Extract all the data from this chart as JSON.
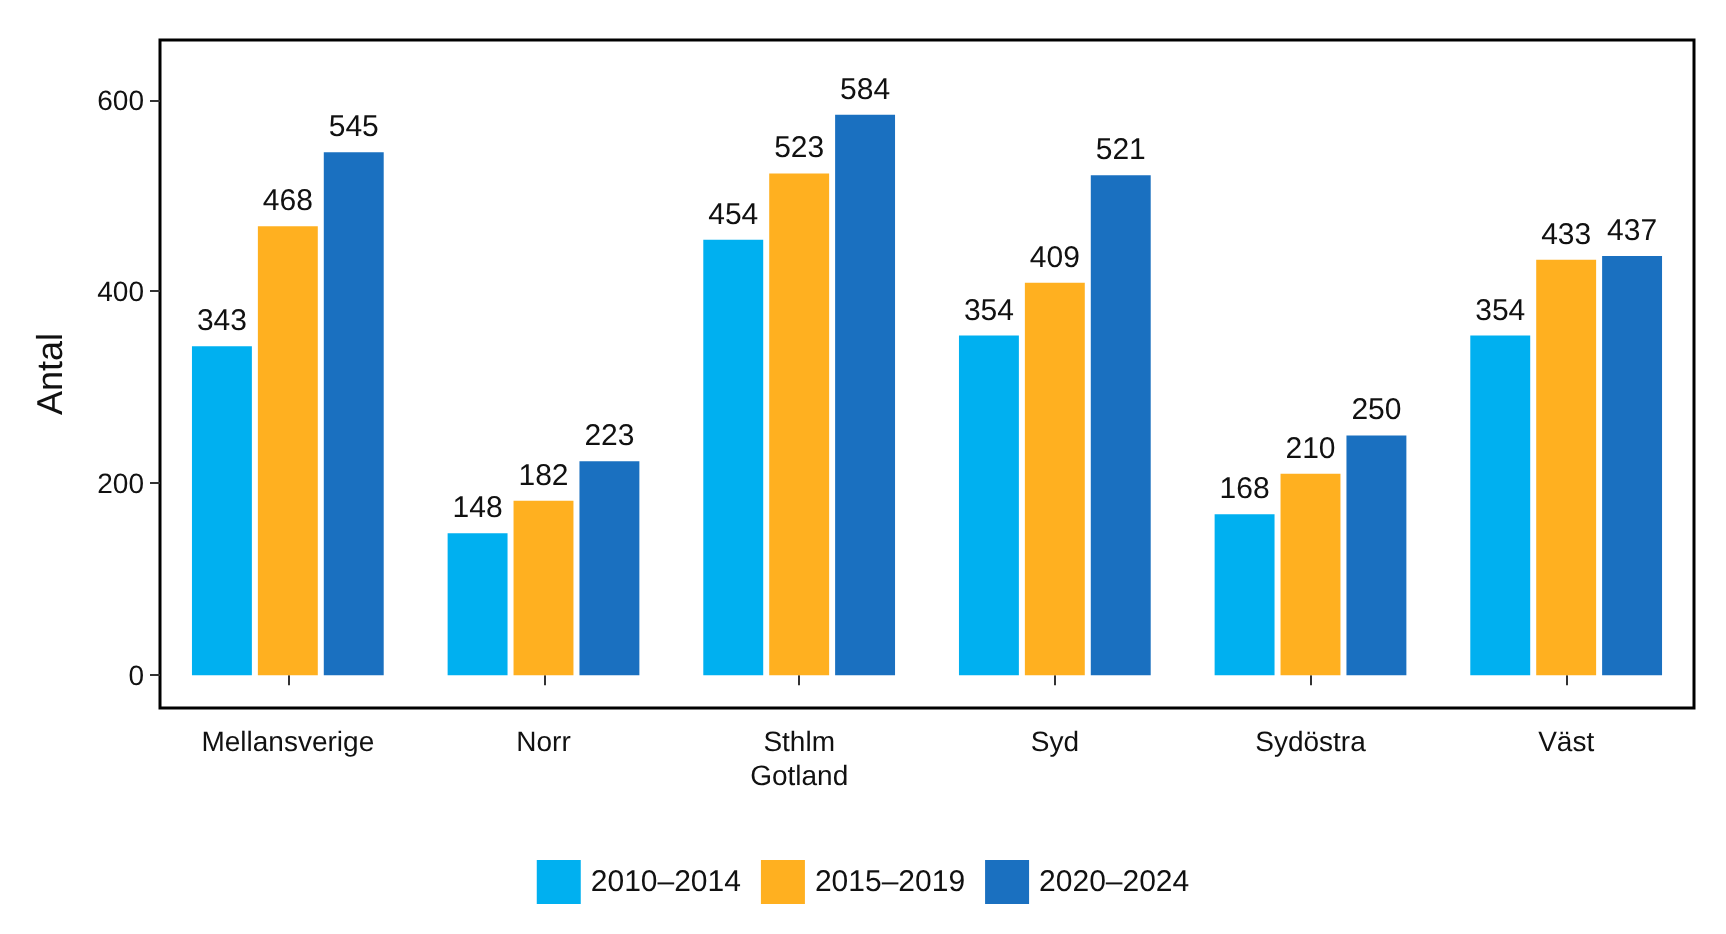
{
  "chart_data": {
    "type": "bar",
    "ylabel": "Antal",
    "categories": [
      "Mellansverige",
      "Norr",
      "Sthlm\nGotland",
      "Syd",
      "Sydöstra",
      "Väst"
    ],
    "series": [
      {
        "name": "2010–2014",
        "color": "#00b0f0",
        "values": [
          343,
          148,
          454,
          354,
          168,
          354
        ]
      },
      {
        "name": "2015–2019",
        "color": "#ffb020",
        "values": [
          468,
          182,
          523,
          409,
          210,
          433
        ]
      },
      {
        "name": "2020–2024",
        "color": "#1a70c0",
        "values": [
          545,
          223,
          584,
          521,
          250,
          437
        ]
      }
    ],
    "ylim": [
      -34,
      662
    ],
    "yticks": [
      0,
      200,
      400,
      600
    ],
    "grid": false,
    "legend": "bottom",
    "data_labels": true
  }
}
